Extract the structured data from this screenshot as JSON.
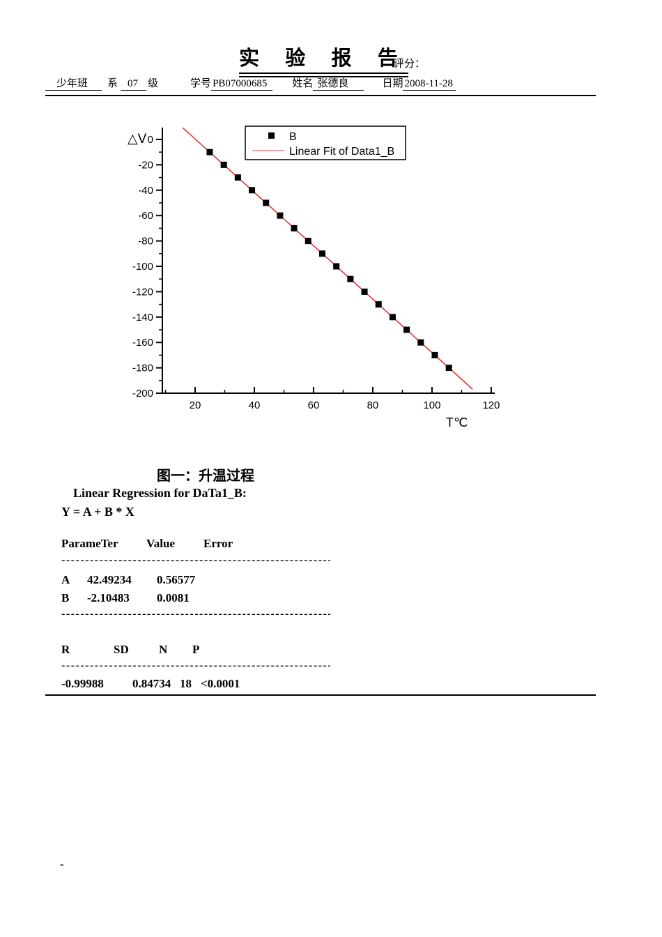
{
  "header": {
    "title": "实 验 报 告",
    "score_label": "评分：",
    "info": {
      "class_value": "少年班",
      "dept_label": "系",
      "grade_value": "07",
      "grade_label": "级",
      "id_label": "学号",
      "id_value": "PB07000685",
      "name_label": "姓名",
      "name_value": "张德良",
      "date_label": "日期",
      "date_value": "2008-11-28"
    }
  },
  "chart_data": {
    "type": "scatter",
    "title": "",
    "xlabel": "T℃",
    "ylabel": "△V",
    "xlim": [
      8.94,
      121.2
    ],
    "ylim": [
      -200,
      9.34
    ],
    "grid": false,
    "x_major_ticks": [
      20,
      40,
      60,
      80,
      100,
      120
    ],
    "x_minor_ticks": [
      10,
      30,
      50,
      70,
      90,
      110
    ],
    "y_major_ticks": [
      0,
      -20,
      -40,
      -60,
      -80,
      -100,
      -120,
      -140,
      -160,
      -180,
      -200
    ],
    "y_minor_ticks": [
      -10,
      -30,
      -50,
      -70,
      -90,
      -110,
      -130,
      -150,
      -170,
      -190
    ],
    "axis_color": "#000000",
    "series": [
      {
        "name": "B",
        "type": "scatter",
        "marker": "square",
        "color": "#000000",
        "x": [
          24.94,
          29.69,
          34.44,
          39.19,
          43.94,
          48.69,
          53.44,
          58.19,
          62.95,
          67.7,
          72.45,
          77.2,
          81.95,
          86.7,
          91.45,
          96.2,
          100.95,
          105.7
        ],
        "y": [
          -10,
          -20,
          -30,
          -40,
          -50,
          -60,
          -70,
          -80,
          -90,
          -100,
          -110,
          -120,
          -130,
          -140,
          -150,
          -160,
          -170,
          -180
        ]
      },
      {
        "name": "Linear Fit of Data1_B",
        "type": "line",
        "color": "#e43535",
        "fit": {
          "A": 42.49234,
          "B": -2.10483
        },
        "x_start": 15.8,
        "x_end": 113.7
      }
    ],
    "legend": {
      "position": "top-center",
      "line_sample_color": "#f08080",
      "entries": [
        {
          "marker": "square",
          "label": "B"
        },
        {
          "marker": "line",
          "label": "Linear Fit of Data1_B"
        }
      ]
    }
  },
  "caption": "图一：升温过程",
  "regression": {
    "heading": "Linear Regression for DaTa1_B:",
    "equation": "Y = A + B * X",
    "dashes": "------------------------------------------------------------------------------------------",
    "param_header": {
      "c1": "ParameTer",
      "c2": "Value",
      "c3": "Error"
    },
    "params": [
      {
        "name": "A",
        "value": "42.49234",
        "error": "0.56577"
      },
      {
        "name": "B",
        "value": "-2.10483",
        "error": "0.0081"
      }
    ],
    "stats_header": {
      "c1": "R",
      "c2": "SD",
      "c3": "N",
      "c4": "P"
    },
    "stats": {
      "r": "-0.99988",
      "sd": "0.84734",
      "n": "18",
      "p": "<0.0001"
    }
  },
  "footer": {
    "dash": "-"
  }
}
